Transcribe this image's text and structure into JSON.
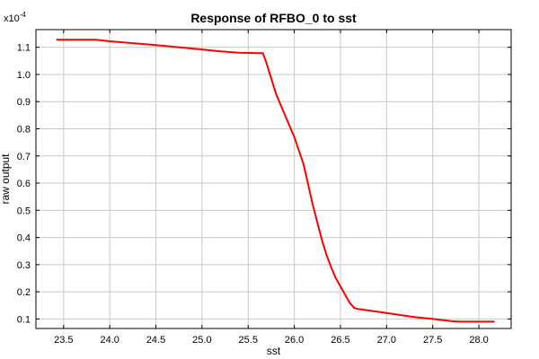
{
  "chart_data": {
    "type": "line",
    "title": "Response of RFBO_0 to sst",
    "xlabel": "sst",
    "ylabel": "raw output",
    "y_multiplier_label": "x10",
    "y_multiplier_exponent": "-4",
    "xlim": [
      23.2,
      28.35
    ],
    "ylim": [
      0.065,
      1.165
    ],
    "x_ticks": [
      "23.5",
      "24.0",
      "24.5",
      "25.0",
      "25.5",
      "26.0",
      "26.5",
      "27.0",
      "27.5",
      "28.0"
    ],
    "y_ticks": [
      "0.1",
      "0.2",
      "0.3",
      "0.4",
      "0.5",
      "0.6",
      "0.7",
      "0.8",
      "0.9",
      "1.0",
      "1.1"
    ],
    "grid": true,
    "colors": {
      "series": "#ff0000",
      "grid": "#c8c8c8",
      "axes": "#000000"
    },
    "series": [
      {
        "x": [
          23.42,
          23.85,
          24.0,
          24.5,
          25.0,
          25.2,
          25.4,
          25.63,
          25.66,
          25.7,
          25.8,
          25.9,
          26.0,
          26.1,
          26.2,
          26.3,
          26.35,
          26.4,
          26.45,
          26.5,
          26.55,
          26.6,
          26.65,
          26.69,
          27.0,
          27.3,
          27.5,
          27.7,
          27.8,
          28.17
        ],
        "y": [
          1.128,
          1.128,
          1.122,
          1.108,
          1.092,
          1.085,
          1.08,
          1.078,
          1.078,
          1.04,
          0.93,
          0.85,
          0.77,
          0.67,
          0.52,
          0.39,
          0.335,
          0.29,
          0.25,
          0.22,
          0.19,
          0.16,
          0.14,
          0.137,
          0.122,
          0.107,
          0.1,
          0.092,
          0.09,
          0.09
        ]
      }
    ]
  }
}
